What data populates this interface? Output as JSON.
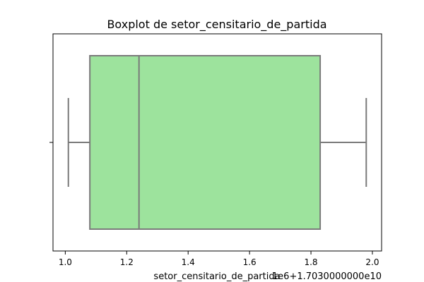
{
  "chart_data": {
    "type": "box",
    "title": "Boxplot de setor_censitario_de_partida",
    "xlabel": "setor_censitario_de_partida",
    "offset_label": "1e6+1.7030000000e10",
    "x_axis": {
      "lim": [
        0.96,
        2.03
      ],
      "ticks": [
        1.0,
        1.2,
        1.4,
        1.6,
        1.8,
        2.0
      ],
      "tick_labels": [
        "1.0",
        "1.2",
        "1.4",
        "1.6",
        "1.8",
        "2.0"
      ]
    },
    "grid": false,
    "box": {
      "whisker_low": 1.01,
      "q1": 1.08,
      "median": 1.24,
      "q3": 1.83,
      "whisker_high": 1.98,
      "fill_color": "#9de39d",
      "line_color": "#7a7a7a"
    }
  }
}
